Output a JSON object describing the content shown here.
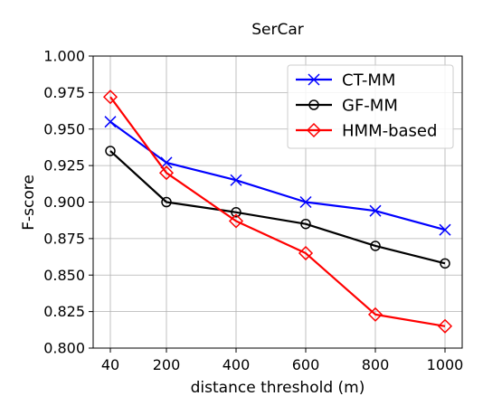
{
  "chart_data": {
    "type": "line",
    "title": "SerCar",
    "xlabel": "distance threshold (m)",
    "ylabel": "F-score",
    "x": [
      "40",
      "200",
      "400",
      "600",
      "800",
      "1000"
    ],
    "ylim": [
      0.8,
      1.0
    ],
    "yticks": [
      "0.800",
      "0.825",
      "0.850",
      "0.875",
      "0.900",
      "0.925",
      "0.950",
      "0.975",
      "1.000"
    ],
    "grid": true,
    "legend_position": "top-right",
    "series": [
      {
        "name": "CT-MM",
        "color": "#0000ff",
        "marker": "x",
        "values": [
          0.955,
          0.927,
          0.915,
          0.9,
          0.894,
          0.881
        ]
      },
      {
        "name": "GF-MM",
        "color": "#000000",
        "marker": "circle",
        "values": [
          0.935,
          0.9,
          0.893,
          0.885,
          0.87,
          0.858
        ]
      },
      {
        "name": "HMM-based",
        "color": "#ff0000",
        "marker": "diamond",
        "values": [
          0.972,
          0.92,
          0.887,
          0.865,
          0.823,
          0.815
        ]
      }
    ]
  }
}
